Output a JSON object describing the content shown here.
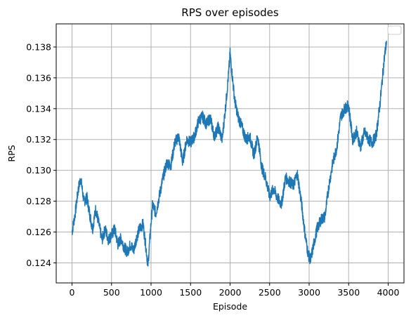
{
  "chart_data": {
    "type": "line",
    "title": "RPS over episodes",
    "xlabel": "Episode",
    "ylabel": "RPS",
    "xlim": [
      -200,
      4200
    ],
    "ylim": [
      0.1227,
      0.1395
    ],
    "xticks": [
      0,
      500,
      1000,
      1500,
      2000,
      2500,
      3000,
      3500,
      4000
    ],
    "yticks": [
      0.124,
      0.126,
      0.128,
      0.13,
      0.132,
      0.134,
      0.136,
      0.138
    ],
    "xtick_labels": [
      "0",
      "500",
      "1000",
      "1500",
      "2000",
      "2500",
      "3000",
      "3500",
      "4000"
    ],
    "ytick_labels": [
      "0.124",
      "0.126",
      "0.128",
      "0.130",
      "0.132",
      "0.134",
      "0.136",
      "0.138"
    ],
    "grid": true,
    "legend": "top-right (empty)",
    "series": [
      {
        "color": "#1f77b4",
        "x": [
          0,
          40,
          80,
          110,
          150,
          190,
          230,
          260,
          300,
          340,
          380,
          420,
          460,
          500,
          540,
          580,
          620,
          660,
          700,
          740,
          780,
          820,
          860,
          900,
          940,
          960,
          1000,
          1020,
          1060,
          1100,
          1150,
          1200,
          1250,
          1300,
          1350,
          1400,
          1450,
          1500,
          1550,
          1600,
          1650,
          1700,
          1750,
          1800,
          1850,
          1900,
          1950,
          1980,
          2000,
          2020,
          2060,
          2100,
          2150,
          2200,
          2250,
          2300,
          2350,
          2400,
          2450,
          2500,
          2550,
          2600,
          2650,
          2700,
          2750,
          2800,
          2850,
          2900,
          2950,
          2990,
          3020,
          3050,
          3100,
          3150,
          3200,
          3250,
          3300,
          3350,
          3400,
          3450,
          3500,
          3550,
          3600,
          3650,
          3700,
          3750,
          3800,
          3850,
          3900,
          3950,
          3980
        ],
        "y": [
          0.126,
          0.1272,
          0.1288,
          0.1295,
          0.128,
          0.1282,
          0.127,
          0.1262,
          0.1275,
          0.1265,
          0.1255,
          0.1262,
          0.1255,
          0.1258,
          0.1262,
          0.1252,
          0.1256,
          0.125,
          0.1247,
          0.1252,
          0.1248,
          0.1257,
          0.1263,
          0.1265,
          0.1248,
          0.1238,
          0.1266,
          0.1278,
          0.1272,
          0.1282,
          0.1295,
          0.1305,
          0.1303,
          0.1318,
          0.1322,
          0.1305,
          0.132,
          0.1318,
          0.1322,
          0.1332,
          0.1335,
          0.133,
          0.1334,
          0.1322,
          0.1328,
          0.132,
          0.1345,
          0.1362,
          0.1376,
          0.1365,
          0.1345,
          0.1335,
          0.1328,
          0.132,
          0.1322,
          0.131,
          0.1322,
          0.1302,
          0.1295,
          0.1283,
          0.1288,
          0.1282,
          0.1278,
          0.1295,
          0.1293,
          0.129,
          0.1298,
          0.128,
          0.1258,
          0.1245,
          0.1242,
          0.125,
          0.1262,
          0.1268,
          0.127,
          0.129,
          0.1305,
          0.1315,
          0.1335,
          0.134,
          0.1342,
          0.132,
          0.1325,
          0.1315,
          0.1325,
          0.132,
          0.1318,
          0.1323,
          0.1345,
          0.1372,
          0.1384
        ]
      }
    ]
  }
}
